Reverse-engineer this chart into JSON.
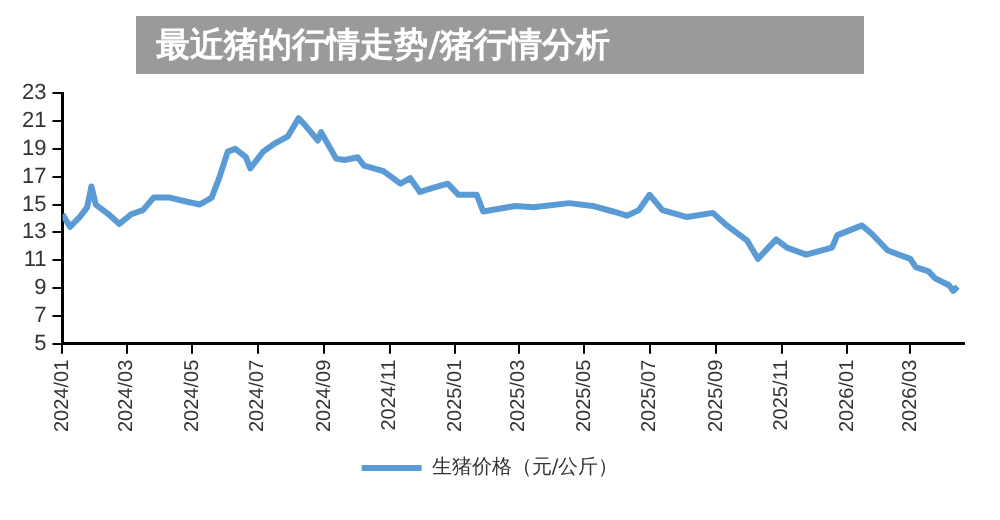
{
  "chart_data": {
    "type": "line",
    "title": "最近猪的行情走势/猪行情分析",
    "x": [
      "2024-01-01",
      "2024-01-08",
      "2024-01-17",
      "2024-01-24",
      "2024-01-28",
      "2024-02-01",
      "2024-02-13",
      "2024-02-23",
      "2024-03-05",
      "2024-03-16",
      "2024-03-26",
      "2024-04-10",
      "2024-04-26",
      "2024-05-08",
      "2024-05-19",
      "2024-05-26",
      "2024-06-03",
      "2024-06-10",
      "2024-06-20",
      "2024-06-24",
      "2024-07-06",
      "2024-07-17",
      "2024-07-29",
      "2024-08-08",
      "2024-08-13",
      "2024-08-26",
      "2024-08-29",
      "2024-09-12",
      "2024-09-20",
      "2024-10-02",
      "2024-10-08",
      "2024-10-26",
      "2024-11-11",
      "2024-11-20",
      "2024-11-29",
      "2024-12-11",
      "2024-12-25",
      "2025-01-04",
      "2025-01-21",
      "2025-01-27",
      "2025-02-26",
      "2025-03-15",
      "2025-04-17",
      "2025-05-09",
      "2025-05-28",
      "2025-06-10",
      "2025-06-21",
      "2025-07-01",
      "2025-07-13",
      "2025-08-05",
      "2025-08-29",
      "2025-09-11",
      "2025-09-30",
      "2025-10-10",
      "2025-10-27",
      "2025-11-06",
      "2025-11-24",
      "2025-12-18",
      "2025-12-23",
      "2026-01-15",
      "2026-01-24",
      "2026-02-08",
      "2026-03-01",
      "2026-03-06",
      "2026-03-18",
      "2026-03-24",
      "2026-04-06",
      "2026-04-10",
      "2026-04-14"
    ],
    "series": [
      {
        "name": "生猪价格（元/公斤）",
        "color": "#5b9bd5",
        "values": [
          14.3,
          13.4,
          14.1,
          14.8,
          16.3,
          15.0,
          14.3,
          13.6,
          14.3,
          14.6,
          15.5,
          15.5,
          15.2,
          15.0,
          15.5,
          16.9,
          18.8,
          19.0,
          18.4,
          17.6,
          18.8,
          19.4,
          19.9,
          21.2,
          20.8,
          19.6,
          20.2,
          18.3,
          18.2,
          18.4,
          17.8,
          17.4,
          16.5,
          16.9,
          15.9,
          16.2,
          16.5,
          15.7,
          15.7,
          14.5,
          14.9,
          14.8,
          15.1,
          14.9,
          14.5,
          14.2,
          14.6,
          15.7,
          14.6,
          14.1,
          14.4,
          13.5,
          12.4,
          11.1,
          12.5,
          11.9,
          11.4,
          11.9,
          12.8,
          13.5,
          12.9,
          11.7,
          11.1,
          10.5,
          10.2,
          9.7,
          9.2,
          8.8,
          9.1
        ]
      }
    ],
    "xlim": [
      "2024-01-01",
      "2026-04-20"
    ],
    "xticks": [
      {
        "value": "2024-01-01",
        "label": "2024/01"
      },
      {
        "value": "2024-03-01",
        "label": "2024/03"
      },
      {
        "value": "2024-05-01",
        "label": "2024/05"
      },
      {
        "value": "2024-07-01",
        "label": "2024/07"
      },
      {
        "value": "2024-09-01",
        "label": "2024/09"
      },
      {
        "value": "2024-11-01",
        "label": "2024/11"
      },
      {
        "value": "2025-01-01",
        "label": "2025/01"
      },
      {
        "value": "2025-03-01",
        "label": "2025/03"
      },
      {
        "value": "2025-05-01",
        "label": "2025/05"
      },
      {
        "value": "2025-07-01",
        "label": "2025/07"
      },
      {
        "value": "2025-09-01",
        "label": "2025/09"
      },
      {
        "value": "2025-11-01",
        "label": "2025/11"
      },
      {
        "value": "2026-01-01",
        "label": "2026/01"
      },
      {
        "value": "2026-03-01",
        "label": "2026/03"
      }
    ],
    "ylim": [
      5,
      23
    ],
    "yticks": [
      5,
      7,
      9,
      11,
      13,
      15,
      17,
      19,
      21,
      23
    ],
    "grid": false,
    "legend": "bottom",
    "marker": "none",
    "line_style": "solid"
  }
}
